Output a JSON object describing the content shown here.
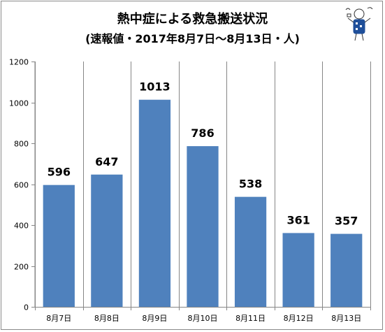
{
  "chart_data": {
    "type": "bar",
    "title": "熱中症による救急搬送状況",
    "subtitle": "(速報値・2017年8月7日～8月13日・人)",
    "categories": [
      "8月7日",
      "8月8日",
      "8月9日",
      "8月10日",
      "8月11日",
      "8月12日",
      "8月13日"
    ],
    "values": [
      596,
      647,
      1013,
      786,
      538,
      361,
      357
    ],
    "data_labels": [
      "596",
      "647",
      "1013",
      "786",
      "538",
      "361",
      "357"
    ],
    "ylim": [
      0,
      1200
    ],
    "yticks": [
      0,
      200,
      400,
      600,
      800,
      1000,
      1200
    ],
    "ytick_labels": [
      "0",
      "200",
      "400",
      "600",
      "800",
      "1000",
      "1200"
    ],
    "xlabel": "",
    "ylabel": "",
    "bar_color": "#4f81bd",
    "grid": "vertical category lines only"
  }
}
